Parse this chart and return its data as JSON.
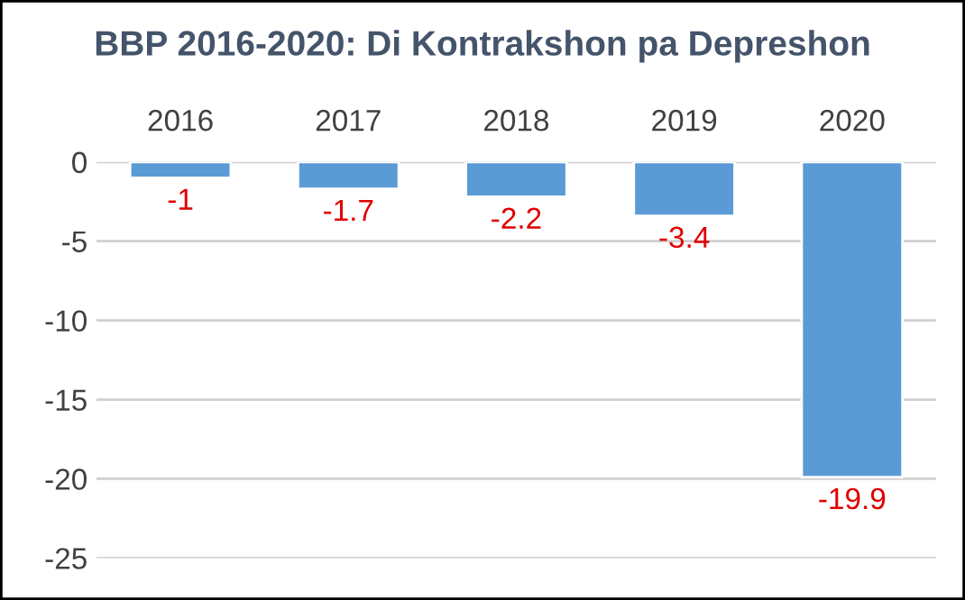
{
  "chart_data": {
    "type": "bar",
    "title": "BBP 2016-2020: Di Kontrakshon pa Depreshon",
    "categories": [
      "2016",
      "2017",
      "2018",
      "2019",
      "2020"
    ],
    "values": [
      -1,
      -1.7,
      -2.2,
      -3.4,
      -19.9
    ],
    "color": "#5b9bd5",
    "ylim": [
      -25,
      0
    ],
    "yticks": [
      -25,
      -20,
      -15,
      -10,
      -5,
      0
    ],
    "grid": "y",
    "data_labels": true
  }
}
